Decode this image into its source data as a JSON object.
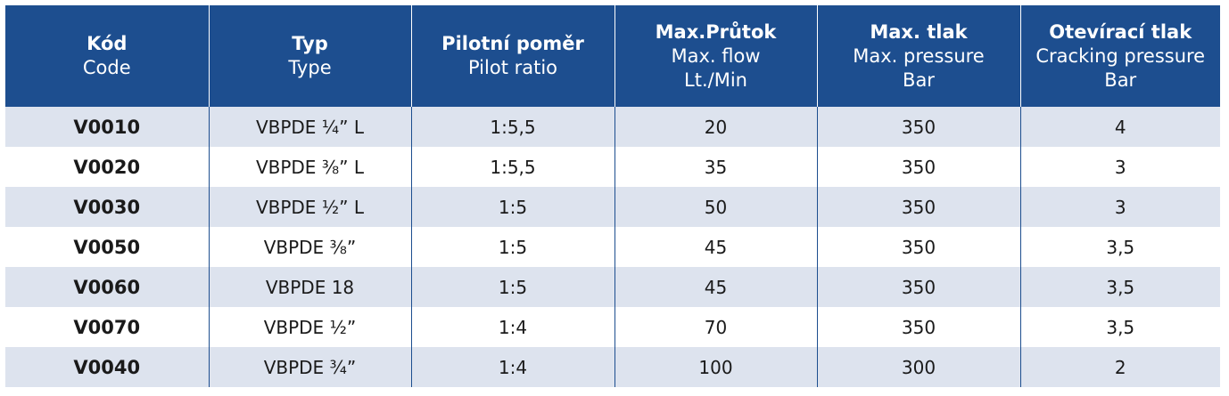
{
  "table": {
    "columns": [
      {
        "cz": "Kód",
        "en": [
          "Code"
        ]
      },
      {
        "cz": "Typ",
        "en": [
          "Type"
        ]
      },
      {
        "cz": "Pilotní poměr",
        "en": [
          "Pilot ratio"
        ]
      },
      {
        "cz": "Max.Průtok",
        "en": [
          "Max. flow",
          "Lt./Min"
        ]
      },
      {
        "cz": "Max. tlak",
        "en": [
          "Max. pressure",
          "Bar"
        ]
      },
      {
        "cz": "Otevírací tlak",
        "en": [
          "Cracking pressure",
          "Bar"
        ]
      }
    ],
    "rows": [
      [
        "V0010",
        "VBPDE ¼” L",
        "1:5,5",
        "20",
        "350",
        "4"
      ],
      [
        "V0020",
        "VBPDE ⅜” L",
        "1:5,5",
        "35",
        "350",
        "3"
      ],
      [
        "V0030",
        "VBPDE ½” L",
        "1:5",
        "50",
        "350",
        "3"
      ],
      [
        "V0050",
        "VBPDE ⅜”",
        "1:5",
        "45",
        "350",
        "3,5"
      ],
      [
        "V0060",
        "VBPDE 18",
        "1:5",
        "45",
        "350",
        "3,5"
      ],
      [
        "V0070",
        "VBPDE ½”",
        "1:4",
        "70",
        "350",
        "3,5"
      ],
      [
        "V0040",
        "VBPDE ¾”",
        "1:4",
        "100",
        "300",
        "2"
      ]
    ]
  }
}
